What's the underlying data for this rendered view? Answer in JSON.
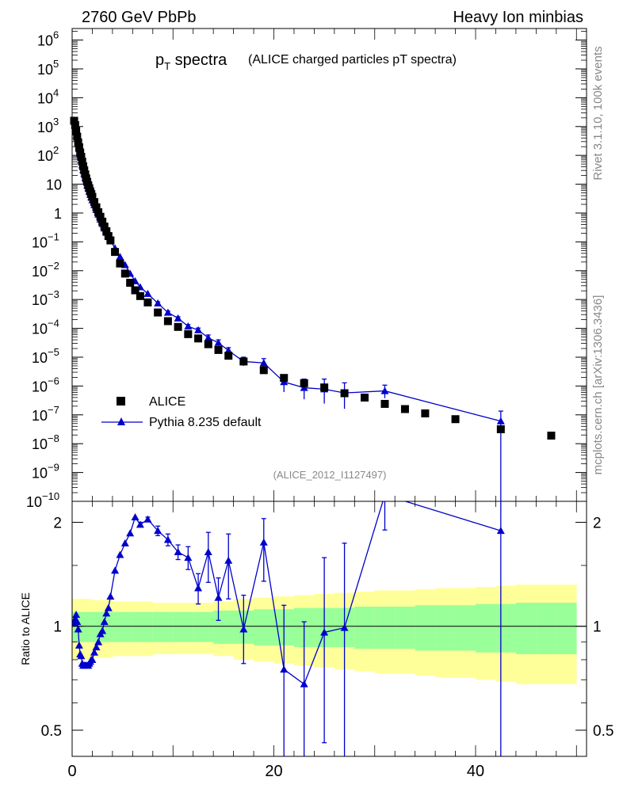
{
  "header": {
    "left": "2760 GeV PbPb",
    "right": "Heavy Ion minbias"
  },
  "side": {
    "top": "Rivet 3.1.10,  100k events",
    "bottom": "mcplots.cern.ch [arXiv:1306.3436]"
  },
  "colors": {
    "data": "#000000",
    "mc": "#0000cc",
    "band_inner": "#99ff99",
    "band_outer": "#ffff99"
  },
  "chart_data": [
    {
      "type": "scatter",
      "title_main": "p",
      "title_sub": "T",
      "title_rest": " spectra",
      "subtitle": "(ALICE charged particles pT spectra)",
      "annotation": "(ALICE_2012_I1127497)",
      "yscale": "log",
      "xlim": [
        0,
        51
      ],
      "ylim_exp": [
        -10,
        6.4
      ],
      "y_ticks": [
        {
          "exp": 6,
          "label": "10",
          "sup": "6"
        },
        {
          "exp": 5,
          "label": "10",
          "sup": "5"
        },
        {
          "exp": 4,
          "label": "10",
          "sup": "4"
        },
        {
          "exp": 3,
          "label": "10",
          "sup": "3"
        },
        {
          "exp": 2,
          "label": "10",
          "sup": "2"
        },
        {
          "exp": 1,
          "label": "10",
          "sup": ""
        },
        {
          "exp": 0,
          "label": "1",
          "sup": ""
        },
        {
          "exp": -1,
          "label": "10",
          "sup": "−1"
        },
        {
          "exp": -2,
          "label": "10",
          "sup": "−2"
        },
        {
          "exp": -3,
          "label": "10",
          "sup": "−3"
        },
        {
          "exp": -4,
          "label": "10",
          "sup": "−4"
        },
        {
          "exp": -5,
          "label": "10",
          "sup": "−5"
        },
        {
          "exp": -6,
          "label": "10",
          "sup": "−6"
        },
        {
          "exp": -7,
          "label": "10",
          "sup": "−7"
        },
        {
          "exp": -8,
          "label": "10",
          "sup": "−8"
        },
        {
          "exp": -9,
          "label": "10",
          "sup": "−9"
        },
        {
          "exp": -10,
          "label": "10",
          "sup": "−10"
        }
      ],
      "legend": [
        {
          "label": "ALICE",
          "marker": "square"
        },
        {
          "label": "Pythia 8.235 default",
          "marker": "triangle"
        }
      ],
      "legend_position": "bottom-left",
      "series": [
        {
          "name": "ALICE",
          "x": [
            0.2,
            0.3,
            0.4,
            0.5,
            0.6,
            0.7,
            0.8,
            0.9,
            1.0,
            1.1,
            1.2,
            1.3,
            1.4,
            1.5,
            1.6,
            1.7,
            1.8,
            1.9,
            2.0,
            2.2,
            2.4,
            2.6,
            2.8,
            3.0,
            3.2,
            3.4,
            3.6,
            3.8,
            4.25,
            4.75,
            5.25,
            5.75,
            6.25,
            6.75,
            7.5,
            8.5,
            9.5,
            10.5,
            11.5,
            12.5,
            13.5,
            14.5,
            15.5,
            17.0,
            19.0,
            21.0,
            23.0,
            25.0,
            27.0,
            29.0,
            31.0,
            33.0,
            35.0,
            38.0,
            42.5,
            47.5
          ],
          "y_exp": [
            3.2,
            3.05,
            2.85,
            2.65,
            2.45,
            2.28,
            2.1,
            1.95,
            1.78,
            1.62,
            1.48,
            1.34,
            1.2,
            1.08,
            0.96,
            0.86,
            0.75,
            0.66,
            0.56,
            0.38,
            0.2,
            0.03,
            -0.13,
            -0.3,
            -0.47,
            -0.63,
            -0.8,
            -0.95,
            -1.35,
            -1.75,
            -2.1,
            -2.42,
            -2.68,
            -2.88,
            -3.1,
            -3.45,
            -3.75,
            -3.95,
            -4.2,
            -4.35,
            -4.55,
            -4.75,
            -4.95,
            -5.15,
            -5.45,
            -5.72,
            -5.9,
            -6.05,
            -6.25,
            -6.4,
            -6.62,
            -6.8,
            -6.95,
            -7.15,
            -7.5,
            -7.72
          ],
          "marker": "square"
        },
        {
          "name": "Pythia 8.235 default",
          "x": [
            0.2,
            0.3,
            0.4,
            0.5,
            0.6,
            0.7,
            0.8,
            0.9,
            1.0,
            1.1,
            1.2,
            1.3,
            1.4,
            1.5,
            1.6,
            1.7,
            1.8,
            1.9,
            2.0,
            2.2,
            2.4,
            2.6,
            2.8,
            3.0,
            3.2,
            3.4,
            3.6,
            3.8,
            4.25,
            4.75,
            5.25,
            5.75,
            6.25,
            6.75,
            7.5,
            8.5,
            9.5,
            10.5,
            11.5,
            12.5,
            13.5,
            14.5,
            15.5,
            17.0,
            19.0,
            21.0,
            23.0,
            25.0,
            27.0,
            31.0,
            42.5
          ],
          "y_exp": [
            3.21,
            3.07,
            2.87,
            2.65,
            2.42,
            2.22,
            2.0,
            1.83,
            1.66,
            1.5,
            1.37,
            1.23,
            1.1,
            0.97,
            0.86,
            0.75,
            0.64,
            0.55,
            0.45,
            0.28,
            0.11,
            -0.05,
            -0.22,
            -0.37,
            -0.53,
            -0.68,
            -0.82,
            -0.96,
            -1.22,
            -1.52,
            -1.8,
            -2.1,
            -2.36,
            -2.57,
            -2.8,
            -3.13,
            -3.45,
            -3.65,
            -3.93,
            -4.06,
            -4.33,
            -4.5,
            -4.77,
            -5.15,
            -5.2,
            -5.86,
            -6.06,
            -6.11,
            -6.24,
            -6.17,
            -7.22
          ],
          "y_err_exp": [
            [
              0,
              0
            ],
            [
              0,
              0
            ],
            [
              0,
              0
            ],
            [
              0,
              0
            ],
            [
              0,
              0
            ],
            [
              0,
              0
            ],
            [
              0,
              0
            ],
            [
              0,
              0
            ],
            [
              0,
              0
            ],
            [
              0,
              0
            ],
            [
              0,
              0
            ],
            [
              0,
              0
            ],
            [
              0,
              0
            ],
            [
              0,
              0
            ],
            [
              0,
              0
            ],
            [
              0,
              0
            ],
            [
              0,
              0
            ],
            [
              0,
              0
            ],
            [
              0,
              0
            ],
            [
              0,
              0
            ],
            [
              0,
              0
            ],
            [
              0,
              0
            ],
            [
              0,
              0
            ],
            [
              0,
              0
            ],
            [
              0,
              0
            ],
            [
              0,
              0
            ],
            [
              0,
              0
            ],
            [
              0,
              0
            ],
            [
              0,
              0
            ],
            [
              0,
              0
            ],
            [
              0,
              0
            ],
            [
              0,
              0
            ],
            [
              0,
              0
            ],
            [
              0,
              0
            ],
            [
              0,
              0
            ],
            [
              0.05,
              0.05
            ],
            [
              0.05,
              0.05
            ],
            [
              0.06,
              0.05
            ],
            [
              0.06,
              0.06
            ],
            [
              0.08,
              0.07
            ],
            [
              0.1,
              0.1
            ],
            [
              0.1,
              0.1
            ],
            [
              0.1,
              0.1
            ],
            [
              0.15,
              0.15
            ],
            [
              0.15,
              0.15
            ],
            [
              0.35,
              0.25
            ],
            [
              0.4,
              0.3
            ],
            [
              0.5,
              0.35
            ],
            [
              0.55,
              0.35
            ],
            [
              0.25,
              0.2
            ],
            [
              3.0,
              0.35
            ]
          ],
          "marker": "triangle"
        }
      ]
    },
    {
      "type": "line",
      "ylabel": "Ratio to ALICE",
      "yscale": "log",
      "xlim": [
        0,
        51
      ],
      "ylim": [
        0.42,
        2.3
      ],
      "x_ticks": [
        0,
        20,
        40
      ],
      "x_tick_labels": [
        "0",
        "20",
        "40"
      ],
      "y_ticks": [
        0.5,
        1,
        2
      ],
      "y_tick_labels": [
        "0.5",
        "1",
        "2"
      ],
      "reference_line": 1,
      "band_edges": [
        0,
        2,
        4,
        6,
        8,
        10,
        12,
        14,
        16,
        18,
        20,
        22,
        24,
        26,
        28,
        30,
        32,
        34,
        36,
        38,
        40,
        42,
        44,
        46,
        48,
        50
      ],
      "band_inner_lo": [
        0.9,
        0.9,
        0.9,
        0.9,
        0.9,
        0.9,
        0.9,
        0.89,
        0.89,
        0.88,
        0.88,
        0.87,
        0.87,
        0.87,
        0.86,
        0.86,
        0.86,
        0.85,
        0.85,
        0.85,
        0.84,
        0.84,
        0.83,
        0.83,
        0.83
      ],
      "band_inner_hi": [
        1.1,
        1.1,
        1.1,
        1.1,
        1.1,
        1.1,
        1.1,
        1.11,
        1.11,
        1.12,
        1.12,
        1.13,
        1.13,
        1.13,
        1.14,
        1.14,
        1.14,
        1.15,
        1.15,
        1.15,
        1.16,
        1.16,
        1.17,
        1.17,
        1.17
      ],
      "band_outer_lo": [
        0.8,
        0.81,
        0.82,
        0.82,
        0.83,
        0.83,
        0.83,
        0.82,
        0.8,
        0.79,
        0.78,
        0.77,
        0.76,
        0.75,
        0.74,
        0.73,
        0.73,
        0.72,
        0.71,
        0.71,
        0.7,
        0.69,
        0.68,
        0.68,
        0.68
      ],
      "band_outer_hi": [
        1.2,
        1.19,
        1.18,
        1.18,
        1.17,
        1.17,
        1.17,
        1.18,
        1.2,
        1.21,
        1.22,
        1.23,
        1.24,
        1.25,
        1.26,
        1.27,
        1.27,
        1.28,
        1.29,
        1.29,
        1.3,
        1.31,
        1.32,
        1.32,
        1.32
      ],
      "series": [
        {
          "name": "Pythia 8.235 default",
          "x": [
            0.2,
            0.3,
            0.4,
            0.5,
            0.6,
            0.7,
            0.8,
            0.9,
            1.0,
            1.1,
            1.2,
            1.3,
            1.4,
            1.5,
            1.6,
            1.7,
            1.8,
            1.9,
            2.0,
            2.2,
            2.4,
            2.6,
            2.8,
            3.0,
            3.2,
            3.4,
            3.6,
            3.8,
            4.25,
            4.75,
            5.25,
            5.75,
            6.25,
            6.75,
            7.5,
            8.5,
            9.5,
            10.5,
            11.5,
            12.5,
            13.5,
            14.5,
            15.5,
            17.0,
            19.0,
            21.0,
            23.0,
            25.0,
            27.0,
            31.0,
            42.5
          ],
          "y": [
            1.02,
            1.05,
            1.08,
            1.03,
            0.98,
            0.88,
            0.83,
            0.82,
            0.78,
            0.77,
            0.77,
            0.77,
            0.77,
            0.77,
            0.77,
            0.78,
            0.79,
            0.8,
            0.8,
            0.84,
            0.87,
            0.9,
            0.95,
            0.97,
            1.03,
            1.09,
            1.13,
            1.22,
            1.45,
            1.61,
            1.74,
            1.86,
            2.07,
            1.97,
            2.04,
            1.89,
            1.78,
            1.64,
            1.58,
            1.29,
            1.64,
            1.21,
            1.55,
            0.98,
            1.75,
            0.75,
            0.68,
            0.96,
            0.99,
            2.4,
            1.89
          ],
          "y_err_lo": [
            0,
            0,
            0,
            0,
            0,
            0,
            0,
            0,
            0,
            0,
            0,
            0,
            0,
            0,
            0,
            0,
            0,
            0,
            0,
            0,
            0,
            0,
            0,
            0,
            0,
            0,
            0,
            0,
            0,
            0,
            0,
            0,
            0,
            0.03,
            0.03,
            0.06,
            0.07,
            0.08,
            0.12,
            0.13,
            0.3,
            0.17,
            0.35,
            0.2,
            0.4,
            0.4,
            0.4,
            0.5,
            0.6,
            0.5,
            1.6
          ],
          "y_err_hi": [
            0,
            0,
            0,
            0,
            0,
            0,
            0,
            0,
            0,
            0,
            0,
            0,
            0,
            0,
            0,
            0,
            0,
            0,
            0,
            0,
            0,
            0,
            0,
            0,
            0,
            0,
            0,
            0,
            0,
            0,
            0,
            0,
            0,
            0.03,
            0.03,
            0.06,
            0.07,
            0.08,
            0.12,
            0.13,
            0.23,
            0.17,
            0.3,
            0.25,
            0.3,
            0.4,
            0.35,
            0.62,
            0.75,
            0.5,
            0.5
          ],
          "marker": "triangle"
        }
      ]
    }
  ]
}
